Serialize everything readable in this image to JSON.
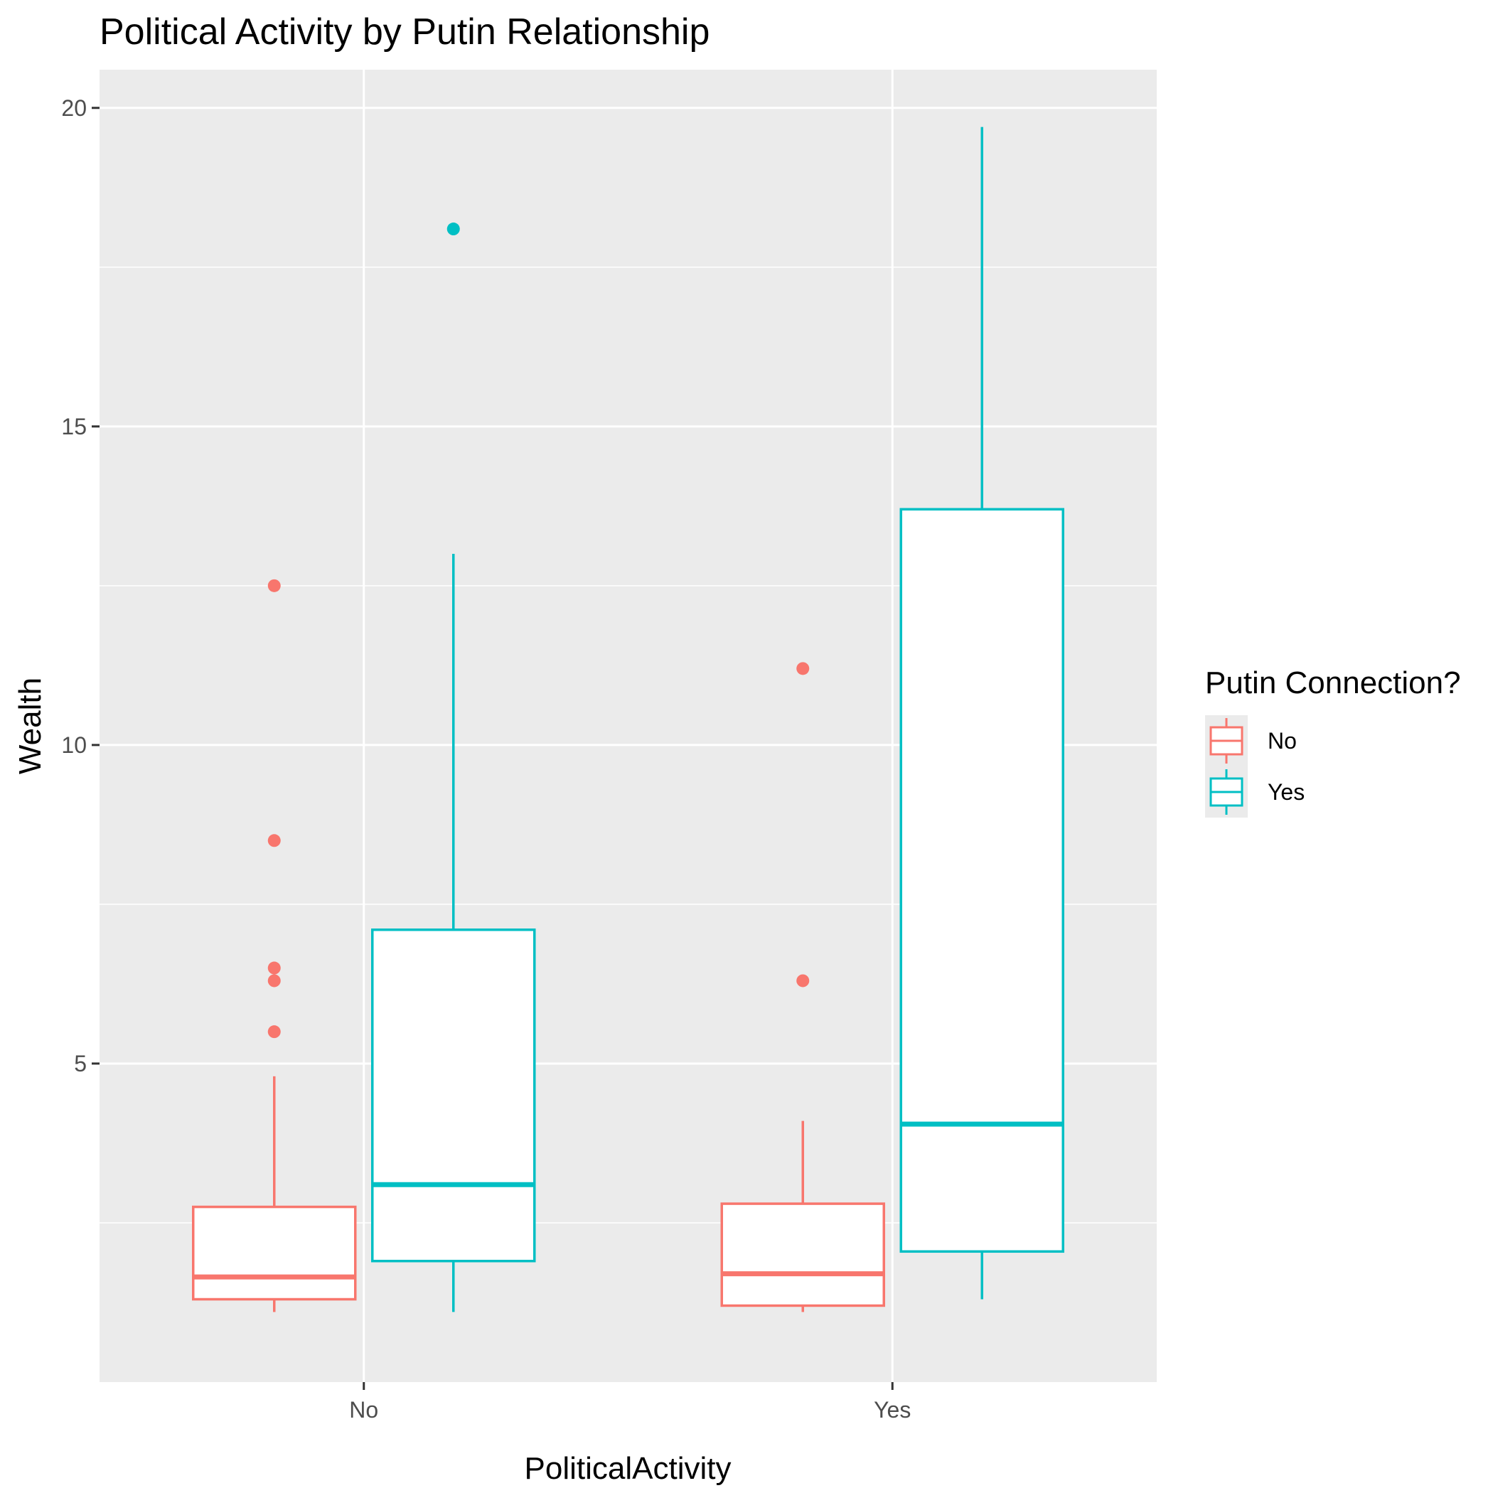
{
  "chart_data": {
    "type": "boxplot",
    "title": "Political Activity by Putin Relationship",
    "xlabel": "PoliticalActivity",
    "ylabel": "Wealth",
    "categories": [
      "No",
      "Yes"
    ],
    "ylim": [
      0.0,
      20.6
    ],
    "yticks": [
      5,
      10,
      15,
      20
    ],
    "ytick_labels": [
      "5",
      "10",
      "15",
      "20"
    ],
    "grid": true,
    "legend": {
      "title": "Putin Connection?",
      "placement": "right"
    },
    "series": [
      {
        "name": "No",
        "color": "#F8766D",
        "boxes": [
          {
            "category": "No",
            "whisker_low": 1.1,
            "q1": 1.3,
            "median": 1.65,
            "q3": 2.75,
            "whisker_high": 4.8,
            "outliers": [
              5.5,
              6.3,
              6.5,
              8.5,
              12.5
            ]
          },
          {
            "category": "Yes",
            "whisker_low": 1.1,
            "q1": 1.2,
            "median": 1.7,
            "q3": 2.8,
            "whisker_high": 4.1,
            "outliers": [
              6.3,
              11.2
            ]
          }
        ]
      },
      {
        "name": "Yes",
        "color": "#00BFC4",
        "boxes": [
          {
            "category": "No",
            "whisker_low": 1.1,
            "q1": 1.9,
            "median": 3.1,
            "q3": 7.1,
            "whisker_high": 13.0,
            "outliers": [
              18.1
            ]
          },
          {
            "category": "Yes",
            "whisker_low": 1.3,
            "q1": 2.05,
            "median": 4.05,
            "q3": 13.7,
            "whisker_high": 19.7,
            "outliers": []
          }
        ]
      }
    ]
  }
}
